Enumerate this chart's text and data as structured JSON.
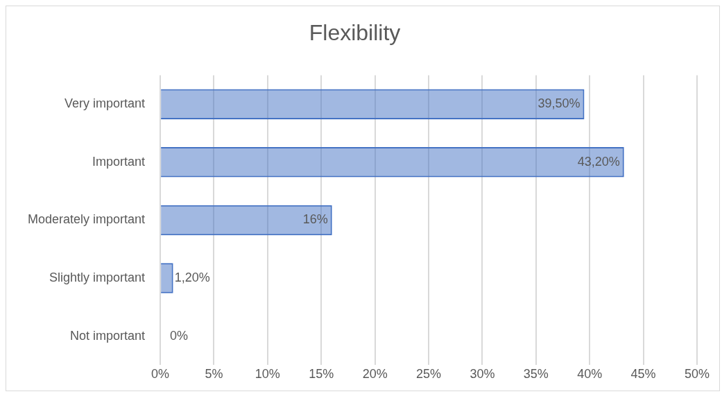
{
  "chart_data": {
    "type": "bar",
    "orientation": "horizontal",
    "title": "Flexibility",
    "categories": [
      "Very important",
      "Important",
      "Moderately important",
      "Slightly important",
      "Not important"
    ],
    "values": [
      39.5,
      43.2,
      16,
      1.2,
      0
    ],
    "value_labels": [
      "39,50%",
      "43,20%",
      "16%",
      "1,20%",
      "0%"
    ],
    "color": "#4472c4",
    "xlim": [
      0,
      50
    ],
    "xticks": [
      {
        "value": 0,
        "label": "0%"
      },
      {
        "value": 5,
        "label": "5%"
      },
      {
        "value": 10,
        "label": "10%"
      },
      {
        "value": 15,
        "label": "15%"
      },
      {
        "value": 20,
        "label": "20%"
      },
      {
        "value": 25,
        "label": "25%"
      },
      {
        "value": 30,
        "label": "30%"
      },
      {
        "value": 35,
        "label": "35%"
      },
      {
        "value": 40,
        "label": "40%"
      },
      {
        "value": 45,
        "label": "45%"
      },
      {
        "value": 50,
        "label": "50%"
      }
    ],
    "grid": "x",
    "legend": false
  }
}
